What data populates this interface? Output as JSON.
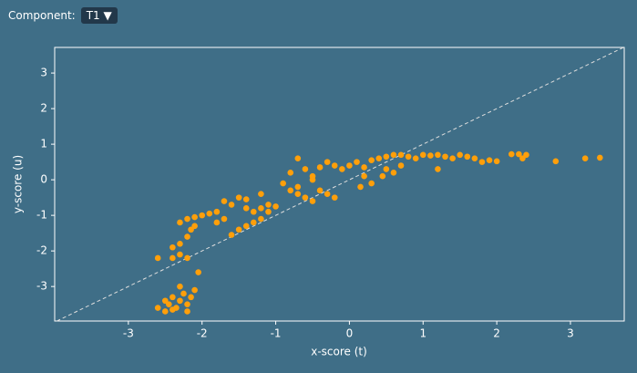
{
  "controls": {
    "component_label": "Component:",
    "component_value": "T1"
  },
  "chart_data": {
    "type": "scatter",
    "xlabel": "x-score (t)",
    "ylabel": "y-score (u)",
    "color": "#ff9f0a",
    "diagonal": true,
    "xlim": [
      -4.0,
      3.73
    ],
    "ylim": [
      -3.97,
      3.72
    ],
    "xticks": [
      -3,
      -2,
      -1,
      0,
      1,
      2,
      3
    ],
    "yticks": [
      -3,
      -2,
      -1,
      0,
      1,
      2,
      3
    ],
    "x": [
      -2.6,
      -2.5,
      -2.45,
      -2.4,
      -2.35,
      -2.3,
      -2.25,
      -2.2,
      -2.15,
      -2.3,
      -2.1,
      -2.05,
      -2.4,
      -2.2,
      -2.5,
      -2.6,
      -2.4,
      -2.3,
      -2.2,
      -2.4,
      -2.3,
      -2.2,
      -2.15,
      -2.3,
      -2.2,
      -2.1,
      -2.0,
      -2.1,
      -1.9,
      -1.8,
      -1.7,
      -1.6,
      -1.5,
      -1.4,
      -1.3,
      -1.2,
      -1.1,
      -1.0,
      -1.6,
      -1.5,
      -1.4,
      -1.3,
      -1.2,
      -1.1,
      -1.8,
      -1.7,
      -1.4,
      -1.2,
      -0.9,
      -0.8,
      -0.7,
      -0.6,
      -0.5,
      -0.4,
      -0.3,
      -0.2,
      -0.7,
      -0.6,
      -0.5,
      -0.8,
      -0.4,
      -0.3,
      -0.2,
      -0.1,
      -0.7,
      -0.5,
      0,
      0.1,
      0.2,
      0.3,
      0.4,
      0.5,
      0.6,
      0.7,
      0.8,
      0.9,
      0.2,
      0.3,
      0.15,
      0.5,
      0.7,
      0.6,
      1.0,
      0.45,
      1.1,
      1.2,
      1.3,
      1.4,
      1.5,
      1.6,
      1.7,
      1.8,
      1.9,
      2.0,
      1.2,
      2.2,
      2.3,
      2.4,
      2.8,
      3.2,
      3.4,
      2.35
    ],
    "values": [
      -3.6,
      -3.7,
      -3.5,
      -3.3,
      -3.6,
      -3.4,
      -3.2,
      -3.5,
      -3.3,
      -3.0,
      -3.1,
      -2.6,
      -3.65,
      -3.7,
      -3.4,
      -2.2,
      -2.2,
      -2.1,
      -2.2,
      -1.9,
      -1.8,
      -1.6,
      -1.4,
      -1.2,
      -1.1,
      -1.05,
      -1.0,
      -1.3,
      -0.95,
      -0.9,
      -0.6,
      -0.7,
      -0.5,
      -0.8,
      -0.9,
      -0.8,
      -0.7,
      -0.75,
      -1.55,
      -1.4,
      -1.3,
      -1.2,
      -1.1,
      -0.9,
      -1.2,
      -1.1,
      -0.55,
      -0.4,
      -0.1,
      0.2,
      0.6,
      0.3,
      0.0,
      -0.3,
      -0.4,
      -0.5,
      -0.4,
      -0.5,
      -0.6,
      -0.3,
      0.35,
      0.5,
      0.4,
      0.3,
      -0.2,
      0.1,
      0.4,
      0.5,
      0.35,
      0.55,
      0.6,
      0.65,
      0.7,
      0.7,
      0.65,
      0.6,
      0.1,
      -0.1,
      -0.2,
      0.3,
      0.4,
      0.2,
      0.7,
      0.1,
      0.68,
      0.7,
      0.65,
      0.6,
      0.7,
      0.65,
      0.6,
      0.5,
      0.55,
      0.52,
      0.3,
      0.72,
      0.72,
      0.7,
      0.52,
      0.6,
      0.62,
      0.6
    ]
  }
}
